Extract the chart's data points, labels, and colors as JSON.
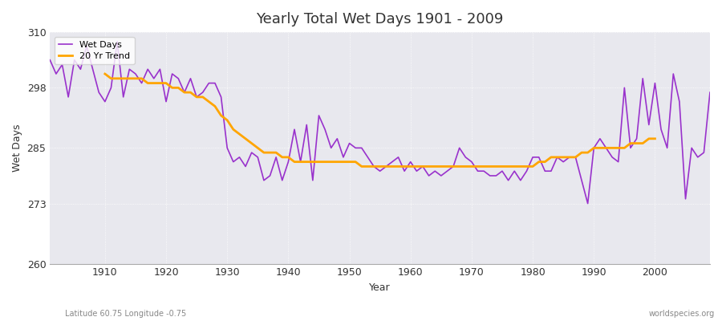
{
  "title": "Yearly Total Wet Days 1901 - 2009",
  "xlabel": "Year",
  "ylabel": "Wet Days",
  "subtitle_left": "Latitude 60.75 Longitude -0.75",
  "subtitle_right": "worldspecies.org",
  "ylim": [
    260,
    310
  ],
  "xlim": [
    1901,
    2009
  ],
  "yticks": [
    260,
    273,
    285,
    298,
    310
  ],
  "xticks": [
    1910,
    1920,
    1930,
    1940,
    1950,
    1960,
    1970,
    1980,
    1990,
    2000
  ],
  "wet_days_color": "#9932CC",
  "trend_color": "#FFA500",
  "figure_bg": "#FFFFFF",
  "axes_bg": "#E8E8EE",
  "legend_labels": [
    "Wet Days",
    "20 Yr Trend"
  ],
  "years": [
    1901,
    1902,
    1903,
    1904,
    1905,
    1906,
    1907,
    1908,
    1909,
    1910,
    1911,
    1912,
    1913,
    1914,
    1915,
    1916,
    1917,
    1918,
    1919,
    1920,
    1921,
    1922,
    1923,
    1924,
    1925,
    1926,
    1927,
    1928,
    1929,
    1930,
    1931,
    1932,
    1933,
    1934,
    1935,
    1936,
    1937,
    1938,
    1939,
    1940,
    1941,
    1942,
    1943,
    1944,
    1945,
    1946,
    1947,
    1948,
    1949,
    1950,
    1951,
    1952,
    1953,
    1954,
    1955,
    1956,
    1957,
    1958,
    1959,
    1960,
    1961,
    1962,
    1963,
    1964,
    1965,
    1966,
    1967,
    1968,
    1969,
    1970,
    1971,
    1972,
    1973,
    1974,
    1975,
    1976,
    1977,
    1978,
    1979,
    1980,
    1981,
    1982,
    1983,
    1984,
    1985,
    1986,
    1987,
    1988,
    1989,
    1990,
    1991,
    1992,
    1993,
    1994,
    1995,
    1996,
    1997,
    1998,
    1999,
    2000,
    2001,
    2002,
    2003,
    2004,
    2005,
    2006,
    2007,
    2008,
    2009
  ],
  "wet_days": [
    304,
    301,
    303,
    296,
    304,
    302,
    307,
    302,
    297,
    295,
    298,
    308,
    296,
    302,
    301,
    299,
    302,
    300,
    302,
    295,
    301,
    300,
    297,
    300,
    296,
    297,
    299,
    299,
    296,
    285,
    282,
    283,
    281,
    284,
    283,
    278,
    279,
    283,
    278,
    282,
    289,
    282,
    290,
    278,
    292,
    289,
    285,
    287,
    283,
    286,
    285,
    285,
    283,
    281,
    280,
    281,
    282,
    283,
    280,
    282,
    280,
    281,
    279,
    280,
    279,
    280,
    281,
    285,
    283,
    282,
    280,
    280,
    279,
    279,
    280,
    278,
    280,
    278,
    280,
    283,
    283,
    280,
    280,
    283,
    282,
    283,
    283,
    278,
    273,
    285,
    287,
    285,
    283,
    282,
    298,
    285,
    287,
    300,
    290,
    299,
    289,
    285,
    301,
    295,
    274,
    285,
    283,
    284,
    297
  ],
  "trend": [
    null,
    null,
    null,
    null,
    null,
    null,
    null,
    null,
    null,
    301,
    300,
    300,
    300,
    300,
    300,
    300,
    299,
    299,
    299,
    299,
    298,
    298,
    297,
    297,
    296,
    296,
    295,
    294,
    292,
    291,
    289,
    288,
    287,
    286,
    285,
    284,
    284,
    284,
    283,
    283,
    282,
    282,
    282,
    282,
    282,
    282,
    282,
    282,
    282,
    282,
    282,
    281,
    281,
    281,
    281,
    281,
    281,
    281,
    281,
    281,
    281,
    281,
    281,
    281,
    281,
    281,
    281,
    281,
    281,
    281,
    281,
    281,
    281,
    281,
    281,
    281,
    281,
    281,
    281,
    281,
    282,
    282,
    283,
    283,
    283,
    283,
    283,
    284,
    284,
    285,
    285,
    285,
    285,
    285,
    285,
    286,
    286,
    286,
    287,
    287,
    null,
    null,
    null,
    null,
    null,
    null,
    null,
    null,
    null
  ]
}
